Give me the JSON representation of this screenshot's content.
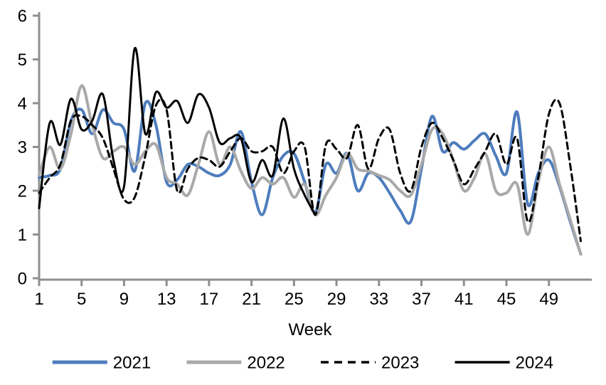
{
  "chart_data": {
    "type": "line",
    "title": "",
    "xlabel": "Week",
    "weeks": [
      1,
      2,
      3,
      4,
      5,
      6,
      7,
      8,
      9,
      10,
      11,
      12,
      13,
      14,
      15,
      16,
      17,
      18,
      19,
      20,
      21,
      22,
      23,
      24,
      25,
      26,
      27,
      28,
      29,
      30,
      31,
      32,
      33,
      34,
      35,
      36,
      37,
      38,
      39,
      40,
      41,
      42,
      43,
      44,
      45,
      46,
      47,
      48,
      49,
      50,
      51,
      52
    ],
    "x_ticks": [
      1,
      5,
      9,
      13,
      17,
      21,
      25,
      29,
      33,
      37,
      41,
      45,
      49
    ],
    "ylim": [
      0,
      6
    ],
    "y_ticks": [
      0,
      1,
      2,
      3,
      4,
      5,
      6
    ],
    "grid": false,
    "legend_position": "bottom",
    "axis_color": "#8F8F8F",
    "series": [
      {
        "name": "2021",
        "color": "#4E7DBD",
        "style": "solid",
        "values": [
          2.3,
          2.35,
          2.5,
          3.6,
          3.85,
          3.3,
          3.85,
          3.55,
          3.4,
          2.45,
          4.0,
          3.5,
          2.2,
          2.25,
          2.6,
          2.55,
          2.4,
          2.35,
          2.6,
          3.35,
          2.2,
          1.45,
          2.3,
          2.8,
          2.85,
          2.2,
          1.5,
          2.6,
          2.4,
          2.85,
          2.0,
          2.4,
          2.3,
          1.95,
          1.55,
          1.3,
          2.5,
          3.7,
          2.9,
          3.1,
          2.95,
          3.15,
          3.3,
          2.8,
          2.4,
          3.8,
          1.7,
          2.4,
          2.7,
          2.1,
          1.3,
          0.55
        ]
      },
      {
        "name": "2022",
        "color": "#A9A9A9",
        "style": "solid",
        "values": [
          2.35,
          3.0,
          2.5,
          3.3,
          4.4,
          3.5,
          2.75,
          2.9,
          3.0,
          2.6,
          2.9,
          3.05,
          2.3,
          2.15,
          1.9,
          2.6,
          3.35,
          2.6,
          3.0,
          2.45,
          2.05,
          2.3,
          2.15,
          2.3,
          1.85,
          2.15,
          1.45,
          1.9,
          2.3,
          2.85,
          2.5,
          2.45,
          2.35,
          2.25,
          2.0,
          1.9,
          2.6,
          3.4,
          3.3,
          2.7,
          2.0,
          2.3,
          2.85,
          2.0,
          1.95,
          2.15,
          1.0,
          2.2,
          3.0,
          2.15,
          1.35,
          0.55
        ]
      },
      {
        "name": "2023",
        "color": "#000000",
        "style": "dashed",
        "values": [
          1.95,
          2.3,
          2.6,
          3.6,
          3.7,
          3.5,
          3.2,
          2.5,
          1.8,
          1.85,
          2.8,
          3.95,
          3.85,
          2.0,
          2.5,
          2.75,
          2.7,
          2.55,
          2.9,
          3.2,
          2.9,
          2.9,
          3.0,
          2.4,
          2.9,
          3.0,
          1.45,
          3.05,
          2.95,
          2.75,
          3.5,
          2.5,
          3.2,
          3.4,
          2.4,
          2.0,
          3.0,
          3.55,
          3.2,
          2.7,
          2.15,
          2.5,
          2.9,
          3.3,
          2.6,
          3.2,
          1.3,
          2.3,
          3.75,
          4.0,
          2.6,
          0.85
        ]
      },
      {
        "name": "2024",
        "color": "#000000",
        "style": "solid",
        "weeks_covered": "1-27",
        "values": [
          1.6,
          3.55,
          3.05,
          4.1,
          3.4,
          3.6,
          4.2,
          2.7,
          2.1,
          5.25,
          3.3,
          4.25,
          3.9,
          4.05,
          3.55,
          4.2,
          3.9,
          3.1,
          3.2,
          3.2,
          2.2,
          2.7,
          2.35,
          3.65,
          2.5,
          1.9,
          1.45
        ]
      }
    ]
  }
}
